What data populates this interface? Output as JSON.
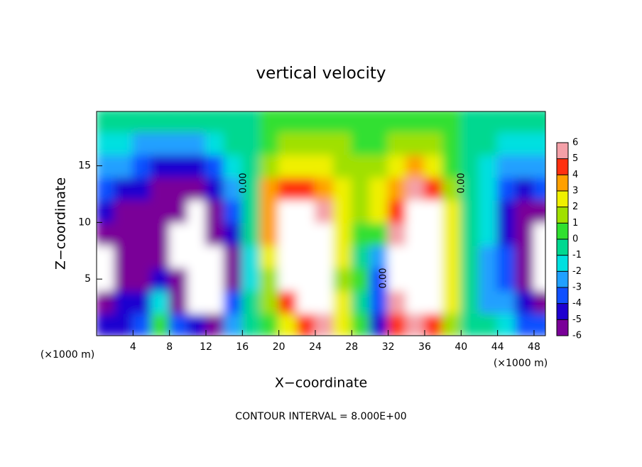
{
  "chart_data": {
    "type": "heatmap",
    "title": "vertical velocity",
    "xlabel": "X−coordinate",
    "ylabel": "Z−coordinate",
    "x_unit_left": "(×1000 m)",
    "x_unit_right": "(×1000 m)",
    "footnote": "CONTOUR INTERVAL = 8.000E+00",
    "contour_labels": [
      "0.00",
      "0.00",
      "0.00"
    ],
    "xlim": [
      0,
      49.25
    ],
    "ylim": [
      0,
      19.8
    ],
    "xticks": [
      4,
      8,
      12,
      16,
      20,
      24,
      28,
      32,
      36,
      40,
      44,
      48
    ],
    "yticks": [
      5,
      10,
      15
    ],
    "x": [
      1,
      3,
      5,
      7,
      9,
      11,
      13,
      15,
      17,
      19,
      21,
      23,
      25,
      27,
      29,
      31,
      33,
      35,
      37,
      39,
      41,
      43,
      45,
      47,
      49
    ],
    "y": [
      1,
      3,
      5,
      7,
      9,
      11,
      13,
      15,
      17,
      19
    ],
    "z": [
      [
        -4,
        -4,
        -3,
        1,
        -3,
        -4,
        -5,
        -2,
        0,
        1,
        3,
        5,
        6,
        3,
        1,
        -4,
        5,
        6,
        5,
        2,
        0,
        -0.5,
        -1,
        -3,
        -3
      ],
      [
        -5,
        -4,
        -4,
        -1,
        -5,
        -7,
        -7,
        -3,
        0,
        2,
        5,
        8,
        7,
        3,
        0,
        -3,
        6,
        8,
        7,
        3,
        0,
        -2,
        -2,
        -4,
        -5
      ],
      [
        -7,
        -5,
        -5,
        -4,
        -6,
        -8,
        -7,
        -5,
        -1,
        2,
        7,
        9,
        7,
        2,
        1,
        -3,
        7,
        9,
        8,
        3,
        0,
        -2,
        -3,
        -5,
        -7
      ],
      [
        -7,
        -5,
        -6,
        -5,
        -7,
        -8,
        -7,
        -5,
        -1,
        3,
        8,
        9,
        8,
        3,
        0,
        -2,
        7,
        9,
        8,
        3,
        0,
        -2,
        -3,
        -5,
        -7
      ],
      [
        -6,
        -5,
        -6,
        -6,
        -7,
        -8,
        -6,
        -4,
        0,
        4,
        8,
        9,
        7,
        3,
        1,
        1,
        6,
        9,
        8,
        3,
        0,
        -1,
        -4,
        -6,
        -7
      ],
      [
        -4,
        -5,
        -5,
        -6,
        -6,
        -7,
        -5,
        -3,
        0,
        4,
        7,
        8,
        6,
        3,
        2,
        3,
        5,
        8,
        7,
        3,
        0,
        -1,
        -4,
        -6,
        -6
      ],
      [
        -3,
        -4,
        -4,
        -5,
        -5,
        -5,
        -4,
        -2,
        0,
        4,
        5,
        5,
        4,
        3,
        2,
        3,
        4,
        6,
        5,
        2,
        0,
        -1,
        -3,
        -4,
        -3
      ],
      [
        -2,
        -2,
        -3,
        -4,
        -4,
        -4,
        -3,
        -1,
        0,
        2,
        3,
        3,
        3,
        2,
        2,
        2,
        3,
        4,
        3,
        1,
        0,
        -1,
        -2,
        -2,
        -2
      ],
      [
        -1,
        -1,
        -2,
        -2,
        -2,
        -2,
        -1,
        -0.5,
        0,
        1,
        1.5,
        2,
        2,
        1.5,
        1,
        1,
        1.5,
        2,
        1.5,
        1,
        0,
        0,
        -1,
        -1,
        -1
      ],
      [
        0,
        0,
        -0.5,
        -0.5,
        -0.5,
        -0.5,
        0,
        0,
        0,
        0.5,
        0.5,
        1,
        1,
        0.5,
        0.5,
        0.5,
        0.5,
        1,
        0.5,
        0.5,
        0,
        0,
        0,
        0,
        0
      ]
    ],
    "colorbar": {
      "ticks": [
        -6,
        -5,
        -4,
        -3,
        -2,
        -1,
        0,
        1,
        2,
        3,
        4,
        5,
        6
      ],
      "colors": [
        "#7a0098",
        "#1e00d0",
        "#1050ff",
        "#20a0ff",
        "#00e0e0",
        "#00d890",
        "#30e030",
        "#a0e000",
        "#f0f000",
        "#ffa000",
        "#ff3010",
        "#f4a0a8"
      ],
      "out_of_range_color": "#ffffff"
    }
  }
}
